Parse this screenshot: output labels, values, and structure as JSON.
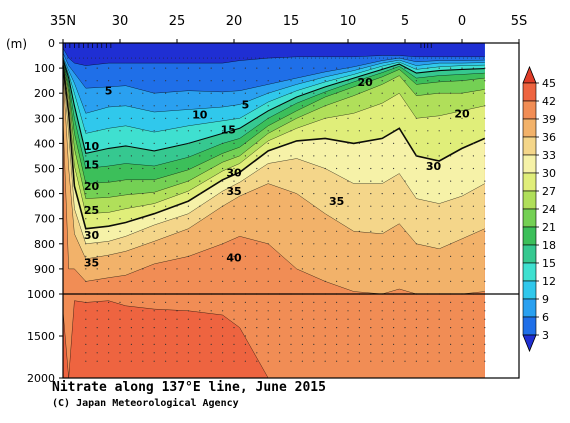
{
  "chart_data": {
    "type": "heatmap",
    "title": "Nitrate along 137°E line, June 2015",
    "credit": "(C) Japan Meteorological Agency",
    "ylabel": "(m)",
    "x_axis": {
      "reversed": true,
      "range_lat": [
        35,
        -5
      ],
      "tick_labels": [
        "35N",
        "30",
        "25",
        "20",
        "15",
        "10",
        "5",
        "0",
        "5S"
      ],
      "tick_values": [
        35,
        30,
        25,
        20,
        15,
        10,
        5,
        0,
        -5
      ]
    },
    "y_axis": {
      "inverted": true,
      "range": [
        0,
        2000
      ],
      "break_at": 1000,
      "tick_labels": [
        "0",
        "100",
        "200",
        "300",
        "400",
        "500",
        "600",
        "700",
        "800",
        "900",
        "1000",
        "1500",
        "2000"
      ],
      "tick_values": [
        0,
        100,
        200,
        300,
        400,
        500,
        600,
        700,
        800,
        900,
        1000,
        1500,
        2000
      ]
    },
    "colorbar": {
      "levels": [
        3,
        6,
        9,
        12,
        15,
        18,
        21,
        24,
        27,
        30,
        33,
        36,
        39,
        42,
        45
      ],
      "labels": [
        "45",
        "42",
        "39",
        "36",
        "33",
        "30",
        "27",
        "24",
        "21",
        "18",
        "15",
        "12",
        "9",
        "6",
        "3"
      ],
      "colors": [
        "#1f2fd3",
        "#1f6fe8",
        "#2aa0f0",
        "#30c8ec",
        "#3fe0d0",
        "#36c890",
        "#3cbf5a",
        "#74d054",
        "#b0df5a",
        "#e0ee7a",
        "#f6f2a8",
        "#f4d68a",
        "#f2b26a",
        "#f18d55",
        "#ee6440",
        "#e03c28"
      ]
    },
    "contour_labels": [
      {
        "text": "5",
        "lat": 31.0,
        "depth": 190
      },
      {
        "text": "5",
        "lat": 19.0,
        "depth": 245
      },
      {
        "text": "10",
        "lat": 23.0,
        "depth": 285
      },
      {
        "text": "15",
        "lat": 20.5,
        "depth": 345
      },
      {
        "text": "10",
        "lat": 32.5,
        "depth": 410
      },
      {
        "text": "15",
        "lat": 32.5,
        "depth": 485
      },
      {
        "text": "20",
        "lat": 32.5,
        "depth": 570
      },
      {
        "text": "25",
        "lat": 32.5,
        "depth": 665
      },
      {
        "text": "30",
        "lat": 32.5,
        "depth": 765
      },
      {
        "text": "35",
        "lat": 32.5,
        "depth": 875
      },
      {
        "text": "30",
        "lat": 20.0,
        "depth": 515
      },
      {
        "text": "35",
        "lat": 20.0,
        "depth": 590
      },
      {
        "text": "40",
        "lat": 20.0,
        "depth": 855
      },
      {
        "text": "35",
        "lat": 11.0,
        "depth": 630
      },
      {
        "text": "30",
        "lat": 2.5,
        "depth": 490
      },
      {
        "text": "20",
        "lat": 8.5,
        "depth": 155
      },
      {
        "text": "20",
        "lat": 0.0,
        "depth": 280
      }
    ],
    "sections": [
      {
        "lat": 35.0,
        "isolines": {
          "3": 20,
          "6": 40,
          "9": 55,
          "12": 60,
          "15": 65,
          "18": 70,
          "21": 75,
          "24": 80,
          "27": 85,
          "30": 90,
          "33": 100,
          "36": 115,
          "39": 300,
          "42": 1200,
          "45": 2000
        }
      },
      {
        "lat": 34.5,
        "isolines": {
          "3": 60,
          "6": 90,
          "9": 110,
          "12": 125,
          "15": 140,
          "18": 160,
          "21": 180,
          "24": 200,
          "27": 230,
          "30": 280,
          "33": 360,
          "36": 500,
          "39": 900,
          "42": 2000,
          "45": 2000
        }
      },
      {
        "lat": 34.0,
        "isolines": {
          "3": 80,
          "6": 120,
          "9": 160,
          "12": 200,
          "15": 250,
          "18": 300,
          "21": 360,
          "24": 420,
          "27": 490,
          "30": 570,
          "33": 660,
          "36": 760,
          "39": 900,
          "42": 1080,
          "45": 2000
        }
      },
      {
        "lat": 33.0,
        "isolines": {
          "3": 90,
          "6": 180,
          "9": 280,
          "12": 360,
          "15": 440,
          "18": 500,
          "21": 560,
          "24": 620,
          "27": 680,
          "30": 740,
          "33": 800,
          "36": 860,
          "39": 950,
          "42": 1100,
          "45": 2000
        }
      },
      {
        "lat": 31.0,
        "isolines": {
          "3": 80,
          "6": 175,
          "9": 255,
          "12": 340,
          "15": 420,
          "18": 490,
          "21": 555,
          "24": 615,
          "27": 675,
          "30": 730,
          "33": 790,
          "36": 845,
          "39": 935,
          "42": 1080,
          "45": 2000
        }
      },
      {
        "lat": 29.5,
        "isolines": {
          "3": 80,
          "6": 170,
          "9": 250,
          "12": 330,
          "15": 410,
          "18": 480,
          "21": 545,
          "24": 605,
          "27": 660,
          "30": 715,
          "33": 770,
          "36": 830,
          "39": 925,
          "42": 1140,
          "45": 2000
        }
      },
      {
        "lat": 27.0,
        "isolines": {
          "3": 80,
          "6": 200,
          "9": 275,
          "12": 355,
          "15": 430,
          "18": 490,
          "21": 545,
          "24": 595,
          "27": 640,
          "30": 680,
          "33": 725,
          "36": 790,
          "39": 880,
          "42": 1180,
          "45": 2000
        }
      },
      {
        "lat": 24.0,
        "isolines": {
          "3": 80,
          "6": 190,
          "9": 265,
          "12": 330,
          "15": 400,
          "18": 455,
          "21": 505,
          "24": 550,
          "27": 590,
          "30": 630,
          "33": 680,
          "36": 740,
          "39": 850,
          "42": 1200,
          "45": 2000
        }
      },
      {
        "lat": 21.0,
        "isolines": {
          "3": 80,
          "6": 195,
          "9": 255,
          "12": 310,
          "15": 360,
          "18": 400,
          "21": 440,
          "24": 475,
          "27": 510,
          "30": 545,
          "33": 590,
          "36": 650,
          "39": 800,
          "42": 1250,
          "45": 2000
        }
      },
      {
        "lat": 19.5,
        "isolines": {
          "3": 70,
          "6": 190,
          "9": 245,
          "12": 300,
          "15": 340,
          "18": 380,
          "21": 415,
          "24": 450,
          "27": 480,
          "30": 515,
          "33": 555,
          "36": 610,
          "39": 770,
          "42": 1400,
          "45": 2000
        }
      },
      {
        "lat": 17.0,
        "isolines": {
          "3": 60,
          "6": 165,
          "9": 200,
          "12": 235,
          "15": 270,
          "18": 300,
          "21": 330,
          "24": 360,
          "27": 390,
          "30": 430,
          "33": 480,
          "36": 560,
          "39": 800,
          "42": 2000,
          "45": 2000
        }
      },
      {
        "lat": 14.5,
        "isolines": {
          "3": 55,
          "6": 140,
          "9": 165,
          "12": 190,
          "15": 215,
          "18": 240,
          "21": 270,
          "24": 300,
          "27": 340,
          "30": 390,
          "33": 460,
          "36": 600,
          "39": 900,
          "42": 2000,
          "45": 2000
        }
      },
      {
        "lat": 12.0,
        "isolines": {
          "3": 55,
          "6": 115,
          "9": 135,
          "12": 155,
          "15": 175,
          "18": 195,
          "21": 215,
          "24": 250,
          "27": 300,
          "30": 380,
          "33": 500,
          "36": 680,
          "39": 950,
          "42": 2000,
          "45": 2000
        }
      },
      {
        "lat": 9.5,
        "isolines": {
          "3": 55,
          "6": 95,
          "9": 110,
          "12": 125,
          "15": 140,
          "18": 155,
          "21": 175,
          "24": 210,
          "27": 280,
          "30": 400,
          "33": 560,
          "36": 750,
          "39": 990,
          "42": 2000,
          "45": 2000
        }
      },
      {
        "lat": 7.0,
        "isolines": {
          "3": 50,
          "6": 70,
          "9": 80,
          "12": 92,
          "15": 105,
          "18": 118,
          "21": 135,
          "24": 165,
          "27": 240,
          "30": 380,
          "33": 560,
          "36": 760,
          "39": 1000,
          "42": 2000,
          "45": 2000
        }
      },
      {
        "lat": 5.5,
        "isolines": {
          "3": 50,
          "6": 60,
          "9": 68,
          "12": 76,
          "15": 84,
          "18": 93,
          "21": 105,
          "24": 130,
          "27": 200,
          "30": 340,
          "33": 520,
          "36": 720,
          "39": 980,
          "42": 2000,
          "45": 2000
        }
      },
      {
        "lat": 4.0,
        "isolines": {
          "3": 55,
          "6": 75,
          "9": 90,
          "12": 105,
          "15": 120,
          "18": 140,
          "21": 165,
          "24": 210,
          "27": 300,
          "30": 450,
          "33": 620,
          "36": 800,
          "39": 1000,
          "42": 2000,
          "45": 2000
        }
      },
      {
        "lat": 2.0,
        "isolines": {
          "3": 55,
          "6": 70,
          "9": 80,
          "12": 95,
          "15": 110,
          "18": 130,
          "21": 155,
          "24": 200,
          "27": 290,
          "30": 470,
          "33": 640,
          "36": 820,
          "39": 1000,
          "42": 2000,
          "45": 2000
        }
      },
      {
        "lat": 0.0,
        "isolines": {
          "3": 55,
          "6": 70,
          "9": 80,
          "12": 90,
          "15": 105,
          "18": 125,
          "21": 150,
          "24": 200,
          "27": 270,
          "30": 420,
          "33": 610,
          "36": 780,
          "39": 1000,
          "42": 2000,
          "45": 2000
        }
      },
      {
        "lat": -2.0,
        "isolines": {
          "3": 55,
          "6": 68,
          "9": 78,
          "12": 88,
          "15": 102,
          "18": 120,
          "21": 140,
          "24": 185,
          "27": 250,
          "30": 380,
          "33": 560,
          "36": 740,
          "39": 990,
          "42": 2000,
          "45": 2000
        }
      }
    ]
  }
}
